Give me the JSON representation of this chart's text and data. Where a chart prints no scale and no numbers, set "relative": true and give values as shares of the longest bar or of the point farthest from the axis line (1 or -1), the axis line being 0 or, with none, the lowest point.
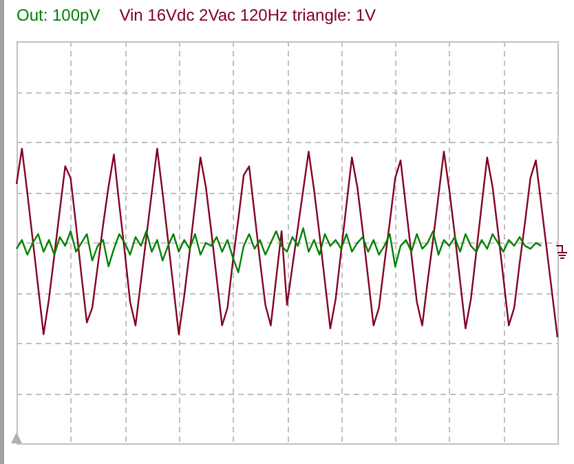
{
  "chart_data": {
    "type": "line",
    "relative": true,
    "grid": true,
    "marker": "none",
    "line_style": "solid",
    "categories": [
      null,
      null,
      null,
      null,
      null,
      null,
      null,
      null,
      null,
      null,
      null,
      null,
      null,
      null,
      null,
      null,
      null,
      null,
      null,
      null,
      null,
      null,
      null,
      null,
      null,
      null,
      null,
      null,
      null,
      null,
      null,
      null,
      null,
      null,
      null,
      null,
      null,
      null,
      null,
      null,
      null,
      null,
      null,
      null,
      null,
      null,
      null,
      null,
      null,
      null,
      null,
      null,
      null,
      null,
      null,
      null,
      null,
      null,
      null,
      null,
      null,
      null,
      null,
      null,
      null,
      null,
      null,
      null,
      null,
      null,
      null,
      null,
      null,
      null,
      null,
      null,
      null,
      null,
      null,
      null,
      null,
      null,
      null,
      null,
      null,
      null,
      null,
      null,
      null,
      null,
      null,
      null,
      null,
      null,
      null,
      null,
      null,
      null,
      null,
      null,
      null
    ],
    "series": [
      {
        "name": "Out: 100pV",
        "color": "#008000",
        "values": [
          0.66,
          0.69,
          0.64,
          0.68,
          0.71,
          0.65,
          0.69,
          0.64,
          0.7,
          0.67,
          0.72,
          0.65,
          0.68,
          0.71,
          0.62,
          0.67,
          0.69,
          0.6,
          0.66,
          0.71,
          0.68,
          0.64,
          0.7,
          0.67,
          0.72,
          0.65,
          0.69,
          0.62,
          0.67,
          0.71,
          0.65,
          0.69,
          0.66,
          0.71,
          0.64,
          0.68,
          0.67,
          0.7,
          0.65,
          0.69,
          0.63,
          0.58,
          0.67,
          0.71,
          0.66,
          0.69,
          0.64,
          0.68,
          0.72,
          0.67,
          0.65,
          0.7,
          0.67,
          0.73,
          0.65,
          0.69,
          0.64,
          0.71,
          0.67,
          0.69,
          0.66,
          0.71,
          0.65,
          0.68,
          0.7,
          0.65,
          0.69,
          0.64,
          0.67,
          0.71,
          0.6,
          0.67,
          0.69,
          0.65,
          0.71,
          0.66,
          0.68,
          0.72,
          0.64,
          0.69,
          0.67,
          0.7,
          0.65,
          0.71,
          0.67,
          0.65,
          0.69,
          0.66,
          0.71,
          0.68,
          0.65,
          0.69,
          0.67,
          0.7,
          0.67,
          0.66,
          0.68,
          0.67,
          null,
          null,
          null
        ]
      },
      {
        "name": "Vin 16Vdc 2Vac 120Hz triangle: 1V",
        "color": "#800020",
        "values": [
          0.88,
          1,
          0.85,
          0.69,
          0.53,
          0.37,
          0.49,
          0.64,
          0.79,
          0.94,
          0.9,
          0.74,
          0.57,
          0.41,
          0.46,
          0.6,
          0.74,
          0.87,
          0.98,
          0.81,
          0.65,
          0.48,
          0.4,
          0.55,
          0.7,
          0.85,
          1,
          0.85,
          0.69,
          0.53,
          0.37,
          0.5,
          0.65,
          0.81,
          0.97,
          0.87,
          0.72,
          0.56,
          0.4,
          0.46,
          0.62,
          0.76,
          0.91,
          0.94,
          0.78,
          0.62,
          0.47,
          0.4,
          0.56,
          0.72,
          0.47,
          0.6,
          0.73,
          0.86,
          0.99,
          0.86,
          0.71,
          0.55,
          0.39,
          0.49,
          0.65,
          0.81,
          0.97,
          0.87,
          0.72,
          0.56,
          0.4,
          0.46,
          0.61,
          0.75,
          0.9,
          0.96,
          0.8,
          0.64,
          0.48,
          0.4,
          0.55,
          0.69,
          0.84,
          0.99,
          0.86,
          0.71,
          0.55,
          0.39,
          0.49,
          0.65,
          0.81,
          0.97,
          0.87,
          0.72,
          0.56,
          0.4,
          0.46,
          0.61,
          0.75,
          0.9,
          0.96,
          0.81,
          0.66,
          0.51,
          0.36
        ]
      }
    ]
  }
}
